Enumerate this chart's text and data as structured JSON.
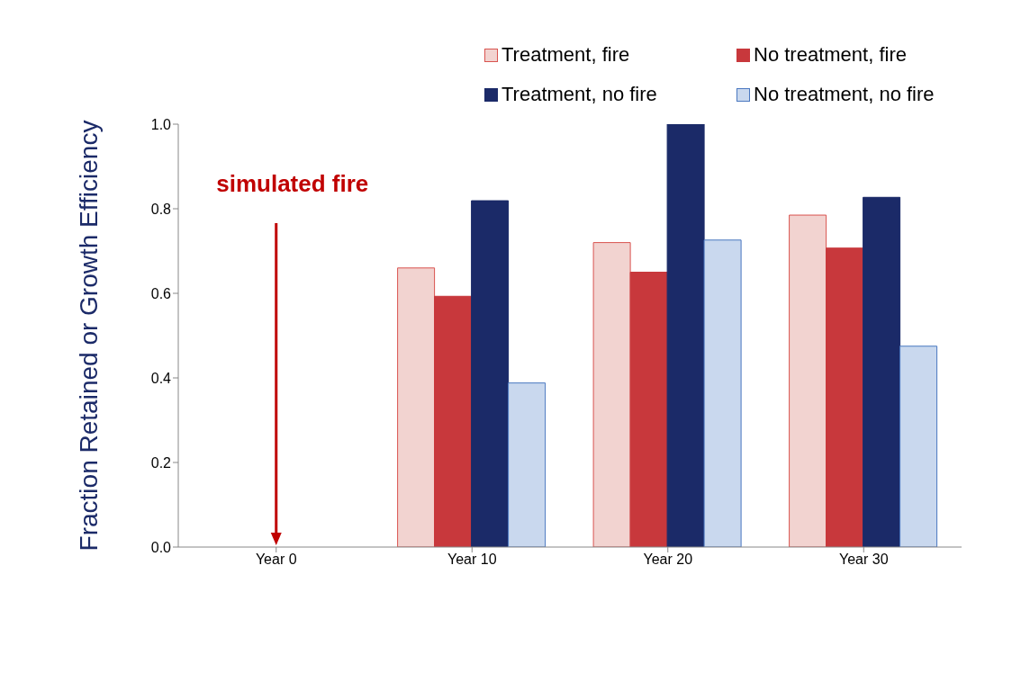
{
  "chart_data": {
    "type": "bar",
    "ylabel": "Fraction Retained or Growth Efficiency",
    "categories": [
      "Year 0",
      "Year 10",
      "Year 20",
      "Year 30"
    ],
    "series": [
      {
        "name": "Treatment, fire",
        "color": "#f2d3d0",
        "values": [
          null,
          0.66,
          0.72,
          0.785
        ]
      },
      {
        "name": "No treatment, fire",
        "color": "#c8383c",
        "values": [
          null,
          0.593,
          0.65,
          0.707
        ]
      },
      {
        "name": "Treatment, no fire",
        "color": "#1b2a68",
        "values": [
          null,
          0.819,
          1.0,
          0.827
        ]
      },
      {
        "name": "No treatment, no fire",
        "color": "#c9d8ee",
        "values": [
          null,
          0.388,
          0.726,
          0.475
        ]
      }
    ],
    "ylim": [
      0,
      1
    ],
    "yticks": [
      {
        "value": 0,
        "label": "0.0"
      },
      {
        "value": 0.2,
        "label": "0.2"
      },
      {
        "value": 0.4,
        "label": "0.4"
      },
      {
        "value": 0.6,
        "label": "0.6"
      },
      {
        "value": 0.8,
        "label": "0.8"
      },
      {
        "value": 1,
        "label": "1.0"
      }
    ],
    "grid": false,
    "legend": "top right",
    "annotations": [
      "simulated fire"
    ]
  }
}
